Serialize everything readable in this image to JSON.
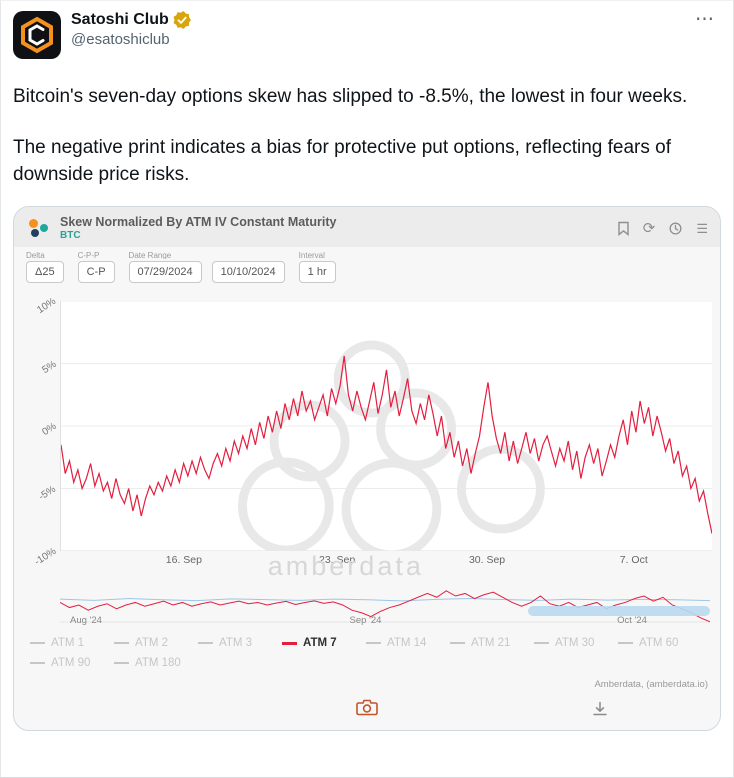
{
  "tweet": {
    "author": "Satoshi Club",
    "handle": "@esatoshiclub",
    "text_p1": "Bitcoin's seven-day options skew has slipped to -8.5%, the lowest in four weeks.",
    "text_p2": "The negative print indicates a bias for protective put options, reflecting fears of downside price risks."
  },
  "icons": {
    "more": "⋯",
    "refresh": "⟳",
    "menu": "☰"
  },
  "chart_card": {
    "title": "Skew Normalized By ATM IV Constant Maturity",
    "subtitle": "BTC",
    "controls": {
      "delta_label": "Delta",
      "delta_value": "Δ25",
      "cpp_label": "C-P-P",
      "cpp_value": "C-P",
      "date_range_label": "Date Range",
      "date_from": "07/29/2024",
      "date_to": "10/10/2024",
      "interval_label": "Interval",
      "interval_value": "1 hr"
    },
    "watermark": "amberdata",
    "attribution": "Amberdata, (amberdata.io)",
    "legend": [
      {
        "label": "ATM 1",
        "active": false
      },
      {
        "label": "ATM 2",
        "active": false
      },
      {
        "label": "ATM 3",
        "active": false
      },
      {
        "label": "ATM 7",
        "active": true
      },
      {
        "label": "ATM 14",
        "active": false
      },
      {
        "label": "ATM 21",
        "active": false
      },
      {
        "label": "ATM 30",
        "active": false
      },
      {
        "label": "ATM 60",
        "active": false
      },
      {
        "label": "ATM 90",
        "active": false
      },
      {
        "label": "ATM 180",
        "active": false
      }
    ]
  },
  "chart_data": {
    "type": "line",
    "title": "Skew Normalized By ATM IV Constant Maturity",
    "series_name": "ATM 7",
    "ylim": [
      -10,
      10
    ],
    "y_ticks": [
      "10%",
      "5%",
      "0%",
      "-5%",
      "-10%"
    ],
    "y_tick_values": [
      10,
      5,
      0,
      -5,
      -10
    ],
    "x_ticks": [
      "16. Sep",
      "23. Sep",
      "30. Sep",
      "7. Oct"
    ],
    "x_tick_positions": [
      0.19,
      0.425,
      0.655,
      0.88
    ],
    "values": [
      -1.5,
      -3.8,
      -2.8,
      -4.5,
      -3.5,
      -5.0,
      -4.2,
      -3.0,
      -4.8,
      -3.8,
      -5.2,
      -4.5,
      -5.8,
      -4.2,
      -5.5,
      -6.2,
      -5.0,
      -6.8,
      -5.5,
      -7.2,
      -5.8,
      -4.8,
      -5.5,
      -4.5,
      -5.2,
      -4.0,
      -4.8,
      -3.5,
      -4.5,
      -3.0,
      -4.0,
      -2.8,
      -3.8,
      -2.5,
      -3.5,
      -4.2,
      -3.0,
      -2.2,
      -3.2,
      -1.8,
      -2.8,
      -1.2,
      -2.2,
      -0.8,
      -1.8,
      -0.2,
      -1.5,
      0.3,
      -1.0,
      0.8,
      -0.5,
      1.2,
      -0.2,
      1.8,
      0.5,
      2.2,
      0.8,
      2.8,
      1.2,
      2.0,
      0.5,
      1.5,
      2.5,
      0.8,
      3.0,
      1.8,
      3.2,
      5.6,
      2.5,
      1.2,
      2.8,
      1.5,
      0.5,
      2.0,
      3.5,
      1.0,
      2.5,
      4.5,
      1.5,
      2.8,
      0.8,
      2.2,
      3.8,
      1.2,
      0.2,
      1.8,
      0.5,
      2.5,
      1.0,
      -0.8,
      0.8,
      -1.8,
      -0.5,
      -2.5,
      -1.2,
      -3.2,
      -1.8,
      -3.8,
      -2.2,
      -0.8,
      1.5,
      3.5,
      0.8,
      -1.0,
      -2.2,
      -0.5,
      -2.8,
      -1.2,
      -3.0,
      -1.8,
      -0.5,
      -2.2,
      -1.0,
      -2.8,
      -1.5,
      -0.8,
      -2.0,
      -3.2,
      -1.8,
      -2.8,
      -1.2,
      -3.5,
      -2.0,
      -4.2,
      -2.5,
      -1.5,
      -3.0,
      -1.8,
      -4.0,
      -2.8,
      -1.5,
      -2.5,
      -0.8,
      0.5,
      -1.5,
      1.2,
      -0.5,
      2.0,
      0.2,
      1.5,
      -0.8,
      0.8,
      -0.5,
      -2.0,
      -1.0,
      -3.0,
      -2.0,
      -4.0,
      -3.2,
      -5.0,
      -4.2,
      -6.0,
      -5.2,
      -7.0,
      -8.6
    ],
    "navigator": {
      "x_labels": [
        "Aug '24",
        "Sep '24",
        "Oct '24"
      ],
      "x_label_positions": [
        0.04,
        0.47,
        0.88
      ],
      "selected_start": 0.72,
      "ylim": [
        -9,
        5
      ],
      "red": [
        -1.0,
        -3.0,
        -2.0,
        -4.0,
        -2.5,
        -1.5,
        -3.5,
        -2.0,
        -1.0,
        -2.5,
        -1.5,
        -0.5,
        -2.0,
        -1.0,
        -2.5,
        -1.5,
        -0.8,
        -2.0,
        -1.2,
        -0.5,
        -1.5,
        -1.0,
        -2.0,
        -1.2,
        -0.6,
        -1.8,
        -1.0,
        -0.4,
        -1.4,
        -0.8,
        -2.0,
        -4.0,
        -5.0,
        -6.5,
        -4.5,
        -3.0,
        -2.0,
        -0.5,
        1.0,
        2.5,
        1.0,
        3.5,
        1.5,
        2.5,
        0.5,
        2.0,
        3.0,
        1.0,
        -1.0,
        -2.5,
        -1.0,
        1.5,
        -1.5,
        -2.5,
        -1.0,
        -3.0,
        -2.0,
        -1.0,
        -3.5,
        -2.0,
        -1.0,
        0.5,
        1.5,
        -0.5,
        1.0,
        -2.0,
        -3.5,
        -5.0,
        -7.0,
        -8.5
      ],
      "blue": [
        0.3,
        -0.2,
        0.5,
        0.0,
        -0.3,
        0.4,
        0.1,
        -0.2,
        0.3,
        0.0,
        -0.4,
        0.2,
        0.5,
        0.1,
        -0.2,
        0.3,
        -0.1,
        0.2,
        0.0,
        -0.3
      ]
    }
  },
  "colors": {
    "series": "#e41e3f",
    "navigator_blue": "#9cc7e6",
    "nav_bar": "#b9d8f0",
    "teal": "#27a39a",
    "gold_badge": "#d9a50b",
    "logo_orange": "#f5921f",
    "logo_teal": "#1fa79c",
    "logo_navy": "#23405e",
    "camera": "#c3532b"
  }
}
